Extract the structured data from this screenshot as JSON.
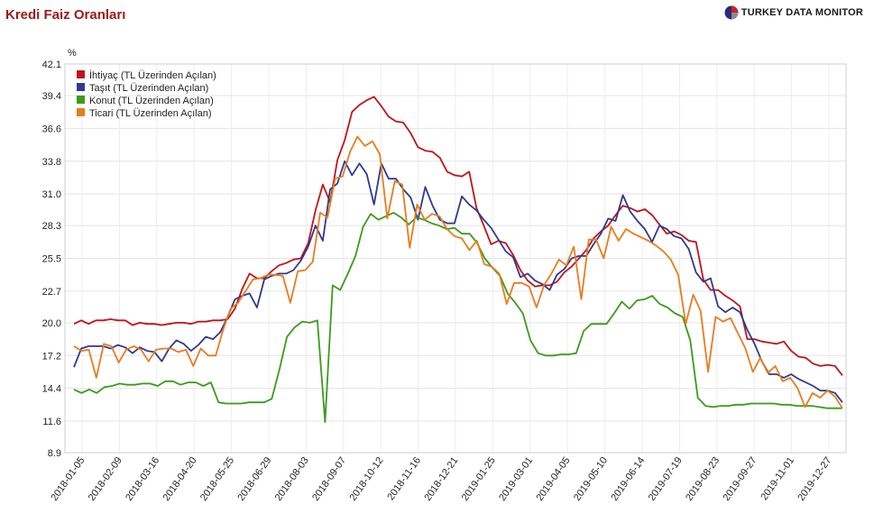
{
  "header": {
    "title": "Kredi Faiz Oranları",
    "brand": "TURKEY DATA MONITOR"
  },
  "chart_data": {
    "type": "line",
    "title": "Kredi Faiz Oranları",
    "ylabel": "%",
    "xlabel": "",
    "ylim": [
      8.9,
      42.1
    ],
    "yticks": [
      8.9,
      11.6,
      14.4,
      17.2,
      20.0,
      22.7,
      25.5,
      28.3,
      31.0,
      33.8,
      36.6,
      39.4,
      42.1
    ],
    "xticks": [
      "2018-01-05",
      "2018-02-09",
      "2018-03-16",
      "2018-04-20",
      "2018-05-25",
      "2018-06-29",
      "2018-08-03",
      "2018-09-07",
      "2018-10-12",
      "2018-11-16",
      "2018-12-21",
      "2019-01-25",
      "2019-03-01",
      "2019-04-05",
      "2019-05-10",
      "2019-06-14",
      "2019-07-19",
      "2019-08-23",
      "2019-09-27",
      "2019-11-01",
      "2019-12-27"
    ],
    "grid": true,
    "legend_position": "top-left",
    "series": [
      {
        "name": "İhtiyaç (TL Üzerinden Açılan)",
        "color": "#c0141c",
        "values": [
          19.9,
          20.2,
          19.9,
          20.2,
          20.2,
          20.3,
          20.2,
          20.2,
          19.8,
          20.0,
          19.9,
          19.9,
          19.8,
          19.9,
          20.0,
          20.0,
          19.9,
          20.1,
          20.1,
          20.2,
          20.2,
          20.3,
          21.2,
          22.9,
          24.2,
          23.8,
          23.8,
          24.4,
          24.9,
          25.1,
          25.4,
          25.5,
          26.8,
          29.6,
          31.8,
          30.3,
          33.9,
          35.6,
          38.0,
          38.6,
          39.0,
          39.3,
          38.5,
          37.6,
          37.2,
          37.1,
          36.2,
          35.0,
          34.7,
          34.6,
          34.1,
          32.9,
          32.6,
          32.5,
          32.9,
          29.8,
          28.3,
          26.7,
          27.0,
          26.8,
          25.8,
          24.5,
          23.6,
          23.1,
          23.2,
          23.2,
          23.5,
          24.3,
          24.8,
          25.5,
          26.2,
          27.2,
          27.8,
          28.3,
          29.2,
          30.0,
          29.8,
          29.5,
          29.7,
          29.2,
          28.4,
          27.6,
          27.8,
          27.5,
          27.0,
          26.9,
          23.7,
          22.8,
          22.8,
          22.3,
          21.9,
          21.4,
          18.6,
          18.6,
          18.4,
          18.3,
          18.2,
          18.4,
          17.6,
          17.1,
          17.0,
          16.5,
          16.3,
          16.4,
          16.3,
          15.5
        ]
      },
      {
        "name": "Taşıt (TL Üzerinden Açılan)",
        "color": "#2f3a8f",
        "values": [
          16.2,
          17.8,
          18.0,
          18.0,
          18.0,
          17.8,
          18.1,
          17.9,
          17.4,
          17.9,
          17.6,
          17.5,
          16.7,
          17.8,
          18.5,
          18.2,
          17.6,
          18.1,
          18.8,
          18.6,
          19.2,
          20.5,
          22.0,
          22.3,
          22.5,
          21.3,
          23.7,
          24.0,
          24.2,
          24.2,
          24.5,
          25.3,
          26.5,
          28.3,
          27.0,
          31.4,
          31.9,
          33.8,
          32.6,
          33.6,
          32.7,
          30.1,
          33.6,
          32.3,
          32.3,
          31.4,
          30.7,
          28.8,
          31.6,
          30.0,
          28.8,
          28.5,
          28.5,
          30.8,
          30.1,
          29.6,
          28.8,
          28.1,
          27.1,
          26.1,
          25.6,
          23.9,
          24.2,
          23.6,
          23.3,
          22.8,
          24.1,
          24.6,
          25.5,
          25.7,
          25.7,
          26.7,
          27.6,
          28.9,
          28.7,
          30.9,
          29.5,
          28.7,
          28.0,
          26.9,
          28.3,
          28.0,
          27.4,
          27.2,
          26.3,
          24.3,
          23.5,
          23.8,
          21.4,
          20.9,
          21.3,
          20.9,
          19.4,
          18.2,
          16.7,
          15.6,
          15.6,
          15.3,
          15.6,
          15.2,
          14.9,
          14.6,
          14.2,
          14.2,
          14.0,
          13.2
        ]
      },
      {
        "name": "Konut (TL Üzerinden Açılan)",
        "color": "#3d9a1c",
        "values": [
          14.3,
          14.0,
          14.3,
          14.0,
          14.5,
          14.6,
          14.8,
          14.7,
          14.7,
          14.8,
          14.8,
          14.6,
          15.0,
          15.0,
          14.7,
          14.9,
          14.9,
          14.6,
          14.9,
          13.2,
          13.1,
          13.1,
          13.1,
          13.2,
          13.2,
          13.2,
          13.5,
          16.0,
          18.8,
          19.6,
          20.1,
          20.0,
          20.2,
          11.5,
          23.2,
          22.8,
          24.2,
          25.7,
          28.2,
          29.3,
          28.8,
          29.1,
          29.4,
          29.0,
          28.4,
          29.0,
          28.8,
          28.5,
          28.3,
          28.0,
          28.1,
          27.6,
          27.6,
          26.8,
          25.5,
          24.7,
          24.0,
          22.5,
          21.7,
          20.8,
          18.5,
          17.4,
          17.2,
          17.2,
          17.3,
          17.3,
          17.4,
          19.3,
          19.9,
          19.9,
          19.9,
          20.8,
          21.8,
          21.2,
          21.9,
          22.0,
          22.3,
          21.6,
          21.3,
          20.8,
          20.5,
          18.5,
          13.6,
          12.9,
          12.8,
          12.9,
          12.9,
          13.0,
          13.0,
          13.1,
          13.1,
          13.1,
          13.1,
          13.0,
          13.0,
          12.9,
          12.9,
          12.9,
          12.8,
          12.7,
          12.7,
          12.7
        ]
      },
      {
        "name": "Ticari (TL Üzerinden Açılan)",
        "color": "#e87c1e",
        "values": [
          18.0,
          17.6,
          17.7,
          15.3,
          18.2,
          18.0,
          16.6,
          17.7,
          18.0,
          17.7,
          16.7,
          17.7,
          17.8,
          17.8,
          17.5,
          17.7,
          16.3,
          17.8,
          17.2,
          17.2,
          19.4,
          21.2,
          21.7,
          22.7,
          23.7,
          23.8,
          24.1,
          24.1,
          24.0,
          21.7,
          24.4,
          24.5,
          25.2,
          29.4,
          29.0,
          32.3,
          32.5,
          34.6,
          35.9,
          35.1,
          35.5,
          34.4,
          28.9,
          32.1,
          31.8,
          26.4,
          30.1,
          28.8,
          29.3,
          29.1,
          28.0,
          27.4,
          27.2,
          26.2,
          27.0,
          25.0,
          24.8,
          24.2,
          21.6,
          23.4,
          23.4,
          23.1,
          21.3,
          23.2,
          24.2,
          25.4,
          24.9,
          26.5,
          22.0,
          27.1,
          27.1,
          25.5,
          28.2,
          27.0,
          28.0,
          27.6,
          27.3,
          27.0,
          26.6,
          26.1,
          25.4,
          24.1,
          19.9,
          22.4,
          21.0,
          15.8,
          20.5,
          20.1,
          20.4,
          19.1,
          17.8,
          15.8,
          17.0,
          15.7,
          16.3,
          15.0,
          15.3,
          14.4,
          12.8,
          14.0,
          13.6,
          14.2,
          13.7,
          12.7
        ]
      }
    ]
  }
}
